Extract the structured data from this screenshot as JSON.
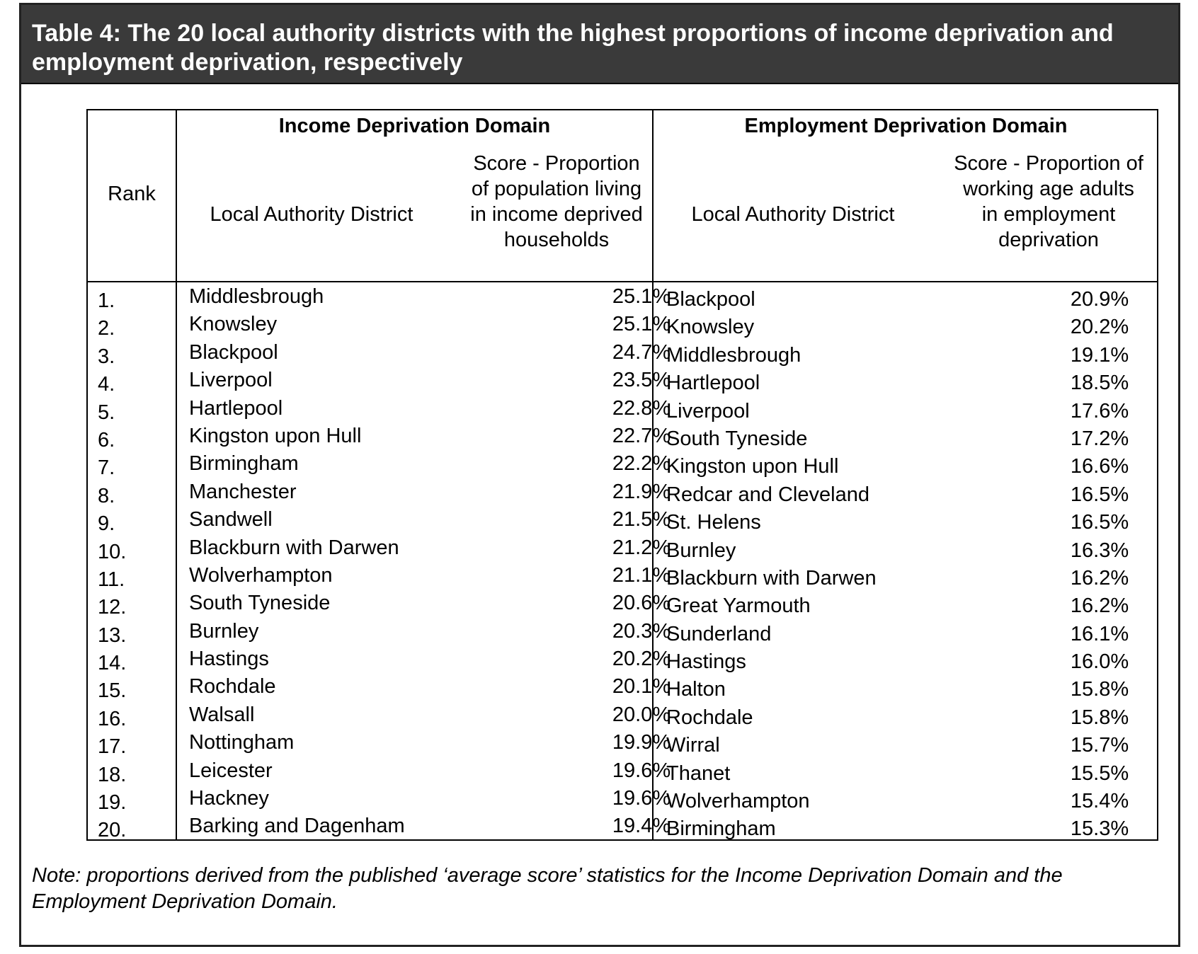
{
  "title": "Table 4: The 20 local authority districts with the highest proportions of income deprivation and employment deprivation, respectively",
  "headers": {
    "rank": "Rank",
    "income_domain": "Income Deprivation Domain",
    "employment_domain": "Employment Deprivation Domain",
    "income_district": "Local Authority District",
    "income_score": "Score - Proportion of population living in income deprived households",
    "employment_district": "Local Authority District",
    "employment_score": "Score - Proportion of working age adults in employment deprivation"
  },
  "rows": [
    {
      "rank": "1.",
      "income_district": "Middlesbrough",
      "income_score": "25.1%",
      "employment_district": "Blackpool",
      "employment_score": "20.9%"
    },
    {
      "rank": "2.",
      "income_district": "Knowsley",
      "income_score": "25.1%",
      "employment_district": "Knowsley",
      "employment_score": "20.2%"
    },
    {
      "rank": "3.",
      "income_district": "Blackpool",
      "income_score": "24.7%",
      "employment_district": "Middlesbrough",
      "employment_score": "19.1%"
    },
    {
      "rank": "4.",
      "income_district": "Liverpool",
      "income_score": "23.5%",
      "employment_district": "Hartlepool",
      "employment_score": "18.5%"
    },
    {
      "rank": "5.",
      "income_district": "Hartlepool",
      "income_score": "22.8%",
      "employment_district": "Liverpool",
      "employment_score": "17.6%"
    },
    {
      "rank": "6.",
      "income_district": "Kingston upon Hull",
      "income_score": "22.7%",
      "employment_district": "South Tyneside",
      "employment_score": "17.2%"
    },
    {
      "rank": "7.",
      "income_district": "Birmingham",
      "income_score": "22.2%",
      "employment_district": "Kingston upon Hull",
      "employment_score": "16.6%"
    },
    {
      "rank": "8.",
      "income_district": "Manchester",
      "income_score": "21.9%",
      "employment_district": "Redcar and Cleveland",
      "employment_score": "16.5%"
    },
    {
      "rank": "9.",
      "income_district": "Sandwell",
      "income_score": "21.5%",
      "employment_district": "St. Helens",
      "employment_score": "16.5%"
    },
    {
      "rank": "10.",
      "income_district": "Blackburn with Darwen",
      "income_score": "21.2%",
      "employment_district": "Burnley",
      "employment_score": "16.3%"
    },
    {
      "rank": "11.",
      "income_district": "Wolverhampton",
      "income_score": "21.1%",
      "employment_district": "Blackburn with Darwen",
      "employment_score": "16.2%"
    },
    {
      "rank": "12.",
      "income_district": "South Tyneside",
      "income_score": "20.6%",
      "employment_district": "Great Yarmouth",
      "employment_score": "16.2%"
    },
    {
      "rank": "13.",
      "income_district": "Burnley",
      "income_score": "20.3%",
      "employment_district": "Sunderland",
      "employment_score": "16.1%"
    },
    {
      "rank": "14.",
      "income_district": "Hastings",
      "income_score": "20.2%",
      "employment_district": "Hastings",
      "employment_score": "16.0%"
    },
    {
      "rank": "15.",
      "income_district": "Rochdale",
      "income_score": "20.1%",
      "employment_district": "Halton",
      "employment_score": "15.8%"
    },
    {
      "rank": "16.",
      "income_district": "Walsall",
      "income_score": "20.0%",
      "employment_district": "Rochdale",
      "employment_score": "15.8%"
    },
    {
      "rank": "17.",
      "income_district": "Nottingham",
      "income_score": "19.9%",
      "employment_district": "Wirral",
      "employment_score": "15.7%"
    },
    {
      "rank": "18.",
      "income_district": "Leicester",
      "income_score": "19.6%",
      "employment_district": "Thanet",
      "employment_score": "15.5%"
    },
    {
      "rank": "19.",
      "income_district": "Hackney",
      "income_score": "19.6%",
      "employment_district": "Wolverhampton",
      "employment_score": "15.4%"
    },
    {
      "rank": "20.",
      "income_district": "Barking and Dagenham",
      "income_score": "19.4%",
      "employment_district": "Birmingham",
      "employment_score": "15.3%"
    }
  ],
  "note": "Note: proportions derived from the published ‘average score’ statistics for the Income Deprivation Domain and the Employment Deprivation Domain."
}
